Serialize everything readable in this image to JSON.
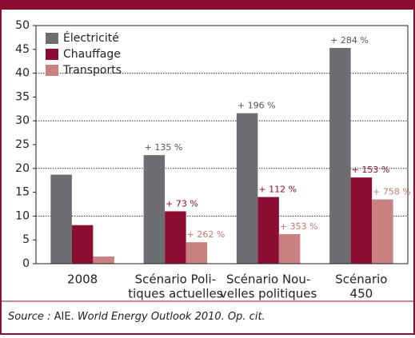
{
  "chart_data": {
    "type": "bar",
    "categories": [
      [
        "2008"
      ],
      [
        "Scénario Poli-",
        "tiques actuelles"
      ],
      [
        "Scénario Nou-",
        "velles politiques"
      ],
      [
        "Scénario",
        "450"
      ]
    ],
    "series": [
      {
        "name": "Électricité",
        "color": "#6d6e71",
        "values": [
          18.7,
          22.8,
          31.6,
          45.3
        ],
        "labels": [
          null,
          "+ 135 %",
          "+ 196 %",
          "+ 284 %"
        ],
        "label_color": "#555555"
      },
      {
        "name": "Chauffage",
        "color": "#8b0d32",
        "values": [
          8.1,
          11,
          14,
          18.1
        ],
        "labels": [
          null,
          "+ 73 %",
          "+ 112 %",
          "+ 153 %"
        ],
        "label_color": "#8b0d32"
      },
      {
        "name": "Transports",
        "color": "#c98080",
        "values": [
          1.5,
          4.5,
          6.2,
          13.5
        ],
        "labels": [
          null,
          "+ 262 %",
          "+ 353 %",
          "+ 758 %"
        ],
        "label_color": "#c07878"
      }
    ],
    "ylim": [
      0,
      50
    ],
    "yticks": [
      0,
      5,
      10,
      15,
      20,
      25,
      30,
      35,
      40,
      45,
      50
    ],
    "grid_ticks": [
      10,
      20,
      30,
      40
    ],
    "legend": "top-left",
    "source": {
      "prefix": "Source :",
      "org": "AIE.",
      "work": "World Energy Outlook 2010. Op. cit."
    }
  }
}
